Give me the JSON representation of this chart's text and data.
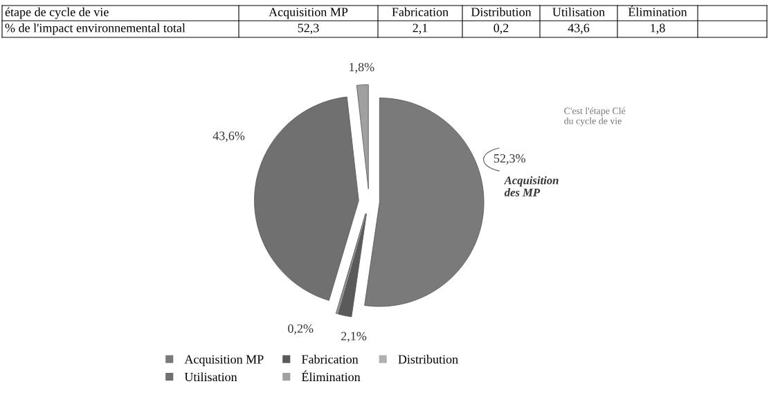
{
  "chart_data": {
    "type": "pie",
    "categories": [
      "Acquisition MP",
      "Fabrication",
      "Distribution",
      "Utilisation",
      "Élimination"
    ],
    "values": [
      52.3,
      2.1,
      0.2,
      43.6,
      1.8
    ],
    "colors": [
      "#7a7a7a",
      "#5a5a5a",
      "#b0b0b0",
      "#707070",
      "#a0a0a0"
    ],
    "value_labels": [
      "52,3%",
      "2,1%",
      "0,2%",
      "43,6%",
      "1,8%"
    ],
    "legend": "bottom",
    "annotations": [
      "étape de cycle de vie",
      "% de l'impact environnemental total",
      "C'est l'étape Clé\ndu cycle de vie",
      "Acquisition\ndes MP",
      "52,3",
      "2,1",
      "0,2",
      "43,6",
      "1,8"
    ]
  }
}
